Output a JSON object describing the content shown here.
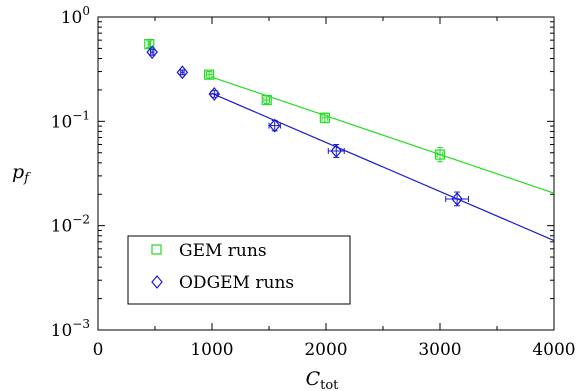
{
  "chart_data": {
    "type": "scatter",
    "title": "",
    "xlabel": "C",
    "xlabel_sub": "tot",
    "ylabel": "p",
    "ylabel_sub": "f",
    "xlim": [
      0,
      4000
    ],
    "ylim": [
      0.001,
      1
    ],
    "yscale": "log",
    "grid": false,
    "legend_position": "bottom-left",
    "x_ticks": [
      0,
      1000,
      2000,
      3000,
      4000
    ],
    "x_tick_labels": [
      "0",
      "1000",
      "2000",
      "3000",
      "4000"
    ],
    "y_ticks": [
      {
        "value": 1,
        "mantissa": "10",
        "exp": "0"
      },
      {
        "value": 0.1,
        "mantissa": "10",
        "exp": "−1"
      },
      {
        "value": 0.01,
        "mantissa": "10",
        "exp": "−2"
      },
      {
        "value": 0.001,
        "mantissa": "10",
        "exp": "−3"
      }
    ],
    "series": [
      {
        "name": "GEM runs",
        "marker": "square",
        "color": "#22dd22",
        "points": [
          {
            "x": 450,
            "y": 0.55,
            "ylo": 0.51,
            "yhi": 0.59,
            "xerr": 10
          },
          {
            "x": 975,
            "y": 0.28,
            "ylo": 0.26,
            "yhi": 0.3,
            "xerr": 25
          },
          {
            "x": 1480,
            "y": 0.16,
            "ylo": 0.148,
            "yhi": 0.175,
            "xerr": 25
          },
          {
            "x": 1990,
            "y": 0.108,
            "ylo": 0.097,
            "yhi": 0.12,
            "xerr": 25
          },
          {
            "x": 3000,
            "y": 0.048,
            "ylo": 0.041,
            "yhi": 0.056,
            "xerr": 25
          }
        ],
        "fit": {
          "x": [
            1000,
            4000
          ],
          "y": [
            0.265,
            0.0205
          ]
        }
      },
      {
        "name": "ODGEM runs",
        "marker": "diamond",
        "color": "#1a1acc",
        "points": [
          {
            "x": 475,
            "y": 0.46,
            "ylo": 0.43,
            "yhi": 0.49,
            "xerr": 15
          },
          {
            "x": 740,
            "y": 0.295,
            "ylo": 0.28,
            "yhi": 0.31,
            "xerr": 15
          },
          {
            "x": 1020,
            "y": 0.183,
            "ylo": 0.17,
            "yhi": 0.197,
            "xerr": 30
          },
          {
            "x": 1550,
            "y": 0.091,
            "ylo": 0.081,
            "yhi": 0.102,
            "xerr": 50
          },
          {
            "x": 2090,
            "y": 0.052,
            "ylo": 0.045,
            "yhi": 0.06,
            "xerr": 70
          },
          {
            "x": 3150,
            "y": 0.018,
            "ylo": 0.0155,
            "yhi": 0.021,
            "xerr": 100
          }
        ],
        "fit": {
          "x": [
            1000,
            4000
          ],
          "y": [
            0.185,
            0.0072
          ]
        }
      }
    ]
  }
}
